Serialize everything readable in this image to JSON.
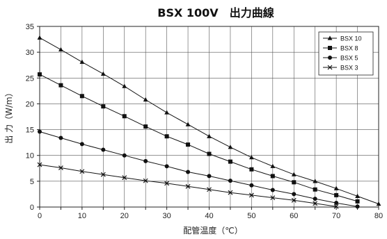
{
  "chart_data": {
    "type": "line",
    "title": "BSX 100V　出力曲線",
    "xlabel": "配管温度（℃）",
    "ylabel": "出 力（W/m）",
    "xlim": [
      0,
      80
    ],
    "ylim": [
      0,
      35
    ],
    "xticks": [
      "0",
      "10",
      "20",
      "30",
      "40",
      "50",
      "60",
      "70",
      "80"
    ],
    "yticks": [
      "0",
      "5",
      "10",
      "15",
      "20",
      "25",
      "30",
      "35"
    ],
    "grid": true,
    "legend_position": "top-right",
    "series": [
      {
        "name": "BSX 10",
        "marker": "triangle",
        "x": [
          0,
          5,
          10,
          15,
          20,
          25,
          30,
          35,
          40,
          45,
          50,
          55,
          60,
          65,
          70,
          75,
          80
        ],
        "y": [
          32.8,
          30.5,
          28.1,
          25.8,
          23.4,
          20.8,
          18.3,
          16.0,
          13.7,
          11.6,
          9.6,
          7.9,
          6.3,
          5.0,
          3.6,
          2.1,
          0.6
        ]
      },
      {
        "name": "BSX 8",
        "marker": "square",
        "x": [
          0,
          5,
          10,
          15,
          20,
          25,
          30,
          35,
          40,
          45,
          50,
          55,
          60,
          65,
          70,
          75
        ],
        "y": [
          25.7,
          23.6,
          21.5,
          19.5,
          17.6,
          15.6,
          13.7,
          12.1,
          10.3,
          8.8,
          7.3,
          6.0,
          4.8,
          3.4,
          2.3,
          1.1
        ]
      },
      {
        "name": "BSX 5",
        "marker": "circle",
        "x": [
          0,
          5,
          10,
          15,
          20,
          25,
          30,
          35,
          40,
          45,
          50,
          55,
          60,
          65,
          70,
          75
        ],
        "y": [
          14.6,
          13.4,
          12.2,
          11.1,
          10.0,
          8.9,
          7.9,
          6.8,
          6.0,
          5.1,
          4.2,
          3.3,
          2.5,
          1.6,
          0.8,
          0.1
        ]
      },
      {
        "name": "BSX 3",
        "marker": "x",
        "x": [
          0,
          5,
          10,
          15,
          20,
          25,
          30,
          35,
          40,
          45,
          50,
          55,
          60,
          65,
          70
        ],
        "y": [
          8.2,
          7.6,
          6.9,
          6.3,
          5.7,
          5.1,
          4.6,
          4.0,
          3.4,
          2.8,
          2.3,
          1.8,
          1.3,
          0.7,
          0.1
        ]
      }
    ]
  }
}
